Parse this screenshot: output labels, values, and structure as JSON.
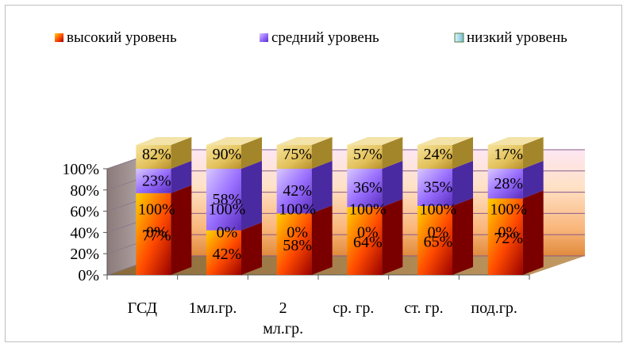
{
  "chart_data": {
    "type": "bar",
    "stacked": true,
    "three_d": true,
    "categories": [
      "ГСД",
      "1мл.гр.",
      "2 мл.гр.",
      "ср. гр.",
      "ст. гр.",
      "под.гр."
    ],
    "category_lines": [
      [
        "ГСД"
      ],
      [
        "1мл.гр."
      ],
      [
        "2",
        "мл.гр."
      ],
      [
        "ср. гр."
      ],
      [
        "ст. гр."
      ],
      [
        "под.гр."
      ]
    ],
    "series": [
      {
        "name": "высокий уровень",
        "values": [
          77,
          42,
          58,
          64,
          65,
          72
        ],
        "labels": [
          "77%",
          "42%",
          "58%",
          "64%",
          "65%",
          "72%"
        ],
        "color": "#e03000"
      },
      {
        "name": "средний уровень",
        "values": [
          23,
          58,
          42,
          36,
          35,
          28
        ],
        "labels": [
          "23%",
          "58%",
          "42%",
          "36%",
          "35%",
          "28%"
        ],
        "color": "#8a6fe0"
      },
      {
        "name": "низкий уровень",
        "values": [
          0,
          0,
          0,
          0,
          0,
          0
        ],
        "labels": [
          "0%",
          "0%",
          "0%",
          "0%",
          "0%",
          "0%"
        ],
        "color": "#8fb870"
      }
    ],
    "extra_labels": {
      "total": [
        "100%",
        "100%",
        "100%",
        "100%",
        "100%",
        "100%"
      ],
      "top": [
        "82%",
        "90%",
        "75%",
        "57%",
        "24%",
        "17%"
      ]
    },
    "yticks": [
      "0%",
      "20%",
      "40%",
      "60%",
      "80%",
      "100%"
    ],
    "ylim": [
      0,
      100
    ],
    "legend_position": "top",
    "grid": true
  }
}
